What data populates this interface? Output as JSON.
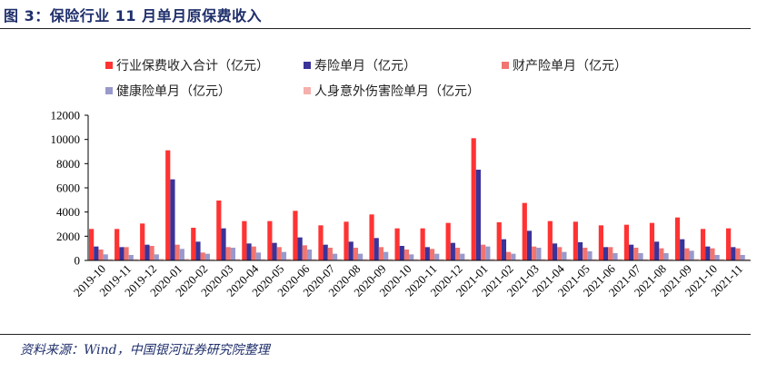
{
  "figure": {
    "title": "图 3：保险行业 11 月单月原保费收入",
    "source": "资料来源：Wind，中国银河证券研究院整理"
  },
  "colors": {
    "total": "#ff3333",
    "life": "#3a3399",
    "property": "#f27470",
    "health": "#9999cc",
    "accident": "#f5b0ac"
  },
  "chart_data": {
    "type": "bar",
    "categories": [
      "2019-10",
      "2019-11",
      "2019-12",
      "2020-01",
      "2020-02",
      "2020-03",
      "2020-04",
      "2020-05",
      "2020-06",
      "2020-07",
      "2020-08",
      "2020-09",
      "2020-10",
      "2020-11",
      "2020-12",
      "2021-01",
      "2021-02",
      "2021-03",
      "2021-04",
      "2021-05",
      "2021-06",
      "2021-07",
      "2021-08",
      "2021-09",
      "2021-10",
      "2021-11"
    ],
    "series": [
      {
        "name": "行业保费收入合计（亿元）",
        "values": [
          2600,
          2600,
          3050,
          9100,
          2700,
          4950,
          3250,
          3250,
          4100,
          2900,
          3200,
          3800,
          2650,
          2650,
          3100,
          10100,
          3150,
          4750,
          3250,
          3200,
          2900,
          2950,
          3100,
          3550,
          2600,
          2650
        ]
      },
      {
        "name": "寿险单月（亿元）",
        "values": [
          1150,
          1100,
          1300,
          6700,
          1550,
          2650,
          1400,
          1450,
          1900,
          1300,
          1550,
          1850,
          1200,
          1100,
          1450,
          7500,
          1750,
          2450,
          1400,
          1500,
          1100,
          1300,
          1550,
          1750,
          1150,
          1100
        ]
      },
      {
        "name": "财产险单月（亿元）",
        "values": [
          900,
          1100,
          1200,
          1300,
          650,
          1100,
          1150,
          1100,
          1250,
          1050,
          1050,
          1100,
          900,
          950,
          1050,
          1300,
          700,
          1150,
          1100,
          1050,
          1100,
          1050,
          1000,
          1000,
          1000,
          1000
        ]
      },
      {
        "name": "健康险单月（亿元）",
        "values": [
          500,
          450,
          500,
          950,
          550,
          1050,
          650,
          700,
          900,
          550,
          550,
          700,
          500,
          550,
          550,
          1150,
          550,
          1050,
          700,
          750,
          600,
          600,
          600,
          800,
          450,
          450
        ]
      },
      {
        "name": "人身意外伤害险单月（亿元）",
        "values": [
          100,
          100,
          120,
          120,
          80,
          110,
          100,
          110,
          100,
          100,
          100,
          110,
          100,
          100,
          100,
          120,
          80,
          110,
          100,
          100,
          100,
          100,
          100,
          110,
          100,
          100
        ]
      }
    ],
    "ylim": [
      0,
      12000
    ],
    "yticks": [
      "0",
      "2000",
      "4000",
      "6000",
      "8000",
      "10000",
      "12000"
    ],
    "grid": false,
    "legend": "top"
  }
}
